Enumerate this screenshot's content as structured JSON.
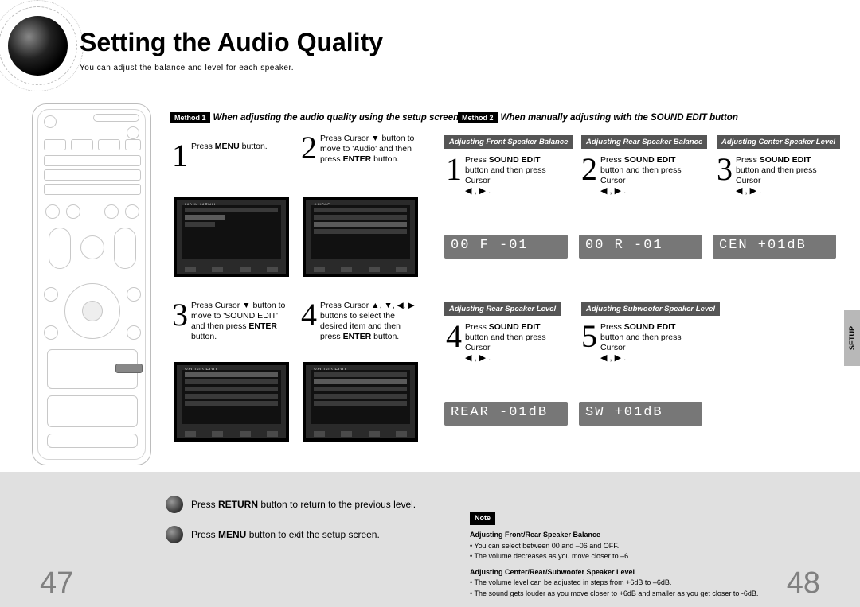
{
  "title": "Setting the Audio Quality",
  "subtitle": "You can adjust the balance and level for each speaker.",
  "side_tab": "SETUP",
  "page_left": "47",
  "page_right": "48",
  "method1": {
    "tag": "Method 1",
    "text": "When adjusting the audio quality using the setup screen"
  },
  "method2": {
    "tag": "Method 2",
    "text": "When manually adjusting with the SOUND EDIT button"
  },
  "steps_m1": {
    "s1": "Press <b>MENU</b> button.",
    "s2": "Press Cursor ▼ button to move to 'Audio' and then press <b>ENTER</b> button.",
    "s3": "Press Cursor ▼ button to move to 'SOUND EDIT' and then press <b>ENTER</b> button.",
    "s4": "Press Cursor ▲, ▼, ◀, ▶ buttons to select the desired item and then press <b>ENTER</b> button."
  },
  "adjust_headers": {
    "h1": "Adjusting Front Speaker Balance",
    "h2": "Adjusting Rear Speaker Balance",
    "h3": "Adjusting Center Speaker Level",
    "h4": "Adjusting Rear Speaker Level",
    "h5": "Adjusting Subwoofer Speaker Level"
  },
  "m2_step_text": "Press <b>SOUND EDIT</b> button and then press Cursor",
  "cursor_lr": "◀ , ▶ .",
  "vfd": {
    "d1": "00 F -01",
    "d2": "00 R -01",
    "d3": "CEN  +01dB",
    "d4": "REAR -01dB",
    "d5": "SW   +01dB"
  },
  "footer": {
    "return_text": "Press <b>RETURN</b> button to return to the previous level.",
    "menu_text": "Press <b>MENU</b> button to exit the setup screen.",
    "note_label": "Note",
    "note1_head": "Adjusting Front/Rear Speaker Balance",
    "note1_b1": "• You can select between 00 and –06 and OFF.",
    "note1_b2": "• The volume decreases as you move closer to –6.",
    "note2_head": "Adjusting Center/Rear/Subwoofer Speaker Level",
    "note2_b1": "• The volume level can be adjusted in steps from +6dB to –6dB.",
    "note2_b2": "• The sound gets louder as you move closer to +6dB and smaller as you get closer to -6dB."
  },
  "colors": {
    "footer_bg": "#e0e0e0",
    "header_bg": "#555555",
    "vfd_bg": "#777777",
    "page_num_color": "#808080"
  }
}
